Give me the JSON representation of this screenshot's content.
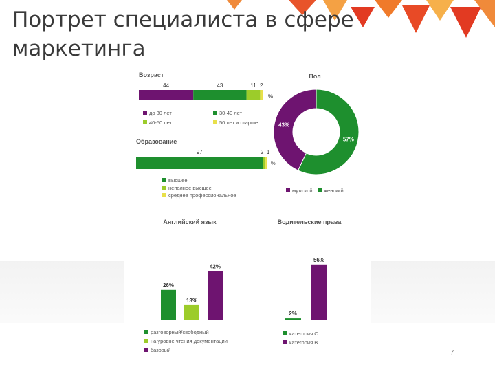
{
  "slide": {
    "title": "Портрет специалиста в сфере маркетинга",
    "page_number": "7"
  },
  "colors": {
    "purple": "#6e1470",
    "green": "#1e8f2e",
    "lightgreen": "#9ccc2a",
    "yellow": "#e8e04a",
    "orange": "#e8542a"
  },
  "chart_data": [
    {
      "type": "bar",
      "stacked": true,
      "orientation": "horizontal",
      "title": "Возраст",
      "unit": "%",
      "series": [
        {
          "name": "до 30 лет",
          "values": [
            44
          ]
        },
        {
          "name": "30-40 лет",
          "values": [
            43
          ]
        },
        {
          "name": "40-50 лет",
          "values": [
            11
          ]
        },
        {
          "name": "50 лет и старше",
          "values": [
            2
          ]
        }
      ]
    },
    {
      "type": "pie",
      "donut": true,
      "title": "Пол",
      "labels": [
        "мужской",
        "женский"
      ],
      "values": [
        43,
        57
      ],
      "data_labels": [
        "43%",
        "57%"
      ]
    },
    {
      "type": "bar",
      "stacked": true,
      "orientation": "horizontal",
      "title": "Образование",
      "unit": "%",
      "series": [
        {
          "name": "высшее",
          "values": [
            97
          ]
        },
        {
          "name": "неполное высшее",
          "values": [
            2
          ]
        },
        {
          "name": "среднее профессиональное",
          "values": [
            1
          ]
        }
      ]
    },
    {
      "type": "bar",
      "title": "Английский язык",
      "categories": [
        "разговорный/свободный",
        "на уровне чтения документации",
        "базовый"
      ],
      "values": [
        26,
        13,
        42
      ],
      "data_labels": [
        "26%",
        "13%",
        "42%"
      ]
    },
    {
      "type": "bar",
      "title": "Водительские права",
      "categories": [
        "категория C",
        "категория B"
      ],
      "values": [
        2,
        56
      ],
      "data_labels": [
        "2%",
        "56%"
      ]
    }
  ]
}
